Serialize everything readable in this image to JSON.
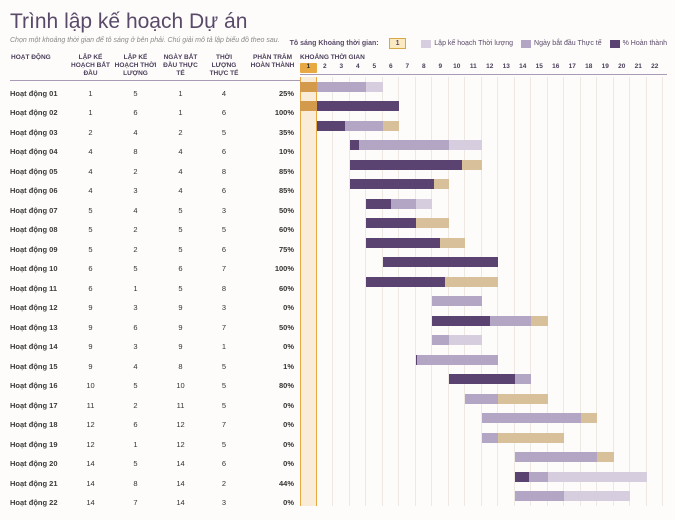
{
  "title": "Trình lập kế hoạch Dự án",
  "subtitle": "Chọn một khoảng thời gian để tô sáng ở bên phải. Chú giải mô tả lập biểu đồ theo sau.",
  "highlight": {
    "label": "Tô sáng Khoảng thời gian:",
    "value": "1"
  },
  "legend": {
    "plan": {
      "label": "Lập kế hoạch Thời lượng",
      "color": "#d6cddf"
    },
    "actual": {
      "label": "Ngày bắt đầu Thực tế",
      "color": "#b3a5c4"
    },
    "pct": {
      "label": "% Hoàn thành",
      "color": "#5a4370"
    }
  },
  "columns": {
    "activity": "HOẠT ĐỘNG",
    "plan_start": "LẬP KẾ HOẠCH BẮT ĐẦU",
    "plan_dur": "LẬP KẾ HOẠCH THỜI LƯỢNG",
    "act_start": "NGÀY BẮT ĐẦU THỰC TẾ",
    "act_dur": "THỜI LƯỢNG THỰC TẾ",
    "pct": "PHẦN TRĂM HOÀN THÀNH",
    "period": "KHOẢNG THỜI GIAN"
  },
  "chart": {
    "periods": 22,
    "cell_width": 16.5,
    "highlight_period": 1,
    "colors": {
      "plan_bar": "#d6cddf",
      "actual_bar": "#b3a5c4",
      "pct_bar": "#5a4370",
      "beyond_bar": "#d7c09a",
      "accent": "#e8a943",
      "grid": "#eee8e2"
    }
  },
  "rows": [
    {
      "name": "Hoạt động 01",
      "ps": 1,
      "pd": 5,
      "as": 1,
      "ad": 4,
      "pct": 25
    },
    {
      "name": "Hoạt động 02",
      "ps": 1,
      "pd": 6,
      "as": 1,
      "ad": 6,
      "pct": 100
    },
    {
      "name": "Hoạt động 03",
      "ps": 2,
      "pd": 4,
      "as": 2,
      "ad": 5,
      "pct": 35
    },
    {
      "name": "Hoạt động 04",
      "ps": 4,
      "pd": 8,
      "as": 4,
      "ad": 6,
      "pct": 10
    },
    {
      "name": "Hoạt động 05",
      "ps": 4,
      "pd": 2,
      "as": 4,
      "ad": 8,
      "pct": 85
    },
    {
      "name": "Hoạt động 06",
      "ps": 4,
      "pd": 3,
      "as": 4,
      "ad": 6,
      "pct": 85
    },
    {
      "name": "Hoạt động 07",
      "ps": 5,
      "pd": 4,
      "as": 5,
      "ad": 3,
      "pct": 50
    },
    {
      "name": "Hoạt động 08",
      "ps": 5,
      "pd": 2,
      "as": 5,
      "ad": 5,
      "pct": 60
    },
    {
      "name": "Hoạt động 09",
      "ps": 5,
      "pd": 2,
      "as": 5,
      "ad": 6,
      "pct": 75
    },
    {
      "name": "Hoạt động 10",
      "ps": 6,
      "pd": 5,
      "as": 6,
      "ad": 7,
      "pct": 100
    },
    {
      "name": "Hoạt động 11",
      "ps": 6,
      "pd": 1,
      "as": 5,
      "ad": 8,
      "pct": 60
    },
    {
      "name": "Hoạt động 12",
      "ps": 9,
      "pd": 3,
      "as": 9,
      "ad": 3,
      "pct": 0
    },
    {
      "name": "Hoạt động 13",
      "ps": 9,
      "pd": 6,
      "as": 9,
      "ad": 7,
      "pct": 50
    },
    {
      "name": "Hoạt động 14",
      "ps": 9,
      "pd": 3,
      "as": 9,
      "ad": 1,
      "pct": 0
    },
    {
      "name": "Hoạt động 15",
      "ps": 9,
      "pd": 4,
      "as": 8,
      "ad": 5,
      "pct": 1
    },
    {
      "name": "Hoạt động 16",
      "ps": 10,
      "pd": 5,
      "as": 10,
      "ad": 5,
      "pct": 80
    },
    {
      "name": "Hoạt động 17",
      "ps": 11,
      "pd": 2,
      "as": 11,
      "ad": 5,
      "pct": 0
    },
    {
      "name": "Hoạt động 18",
      "ps": 12,
      "pd": 6,
      "as": 12,
      "ad": 7,
      "pct": 0
    },
    {
      "name": "Hoạt động 19",
      "ps": 12,
      "pd": 1,
      "as": 12,
      "ad": 5,
      "pct": 0
    },
    {
      "name": "Hoạt động 20",
      "ps": 14,
      "pd": 5,
      "as": 14,
      "ad": 6,
      "pct": 0
    },
    {
      "name": "Hoạt động 21",
      "ps": 14,
      "pd": 8,
      "as": 14,
      "ad": 2,
      "pct": 44
    },
    {
      "name": "Hoạt động 22",
      "ps": 14,
      "pd": 7,
      "as": 14,
      "ad": 3,
      "pct": 0
    }
  ]
}
